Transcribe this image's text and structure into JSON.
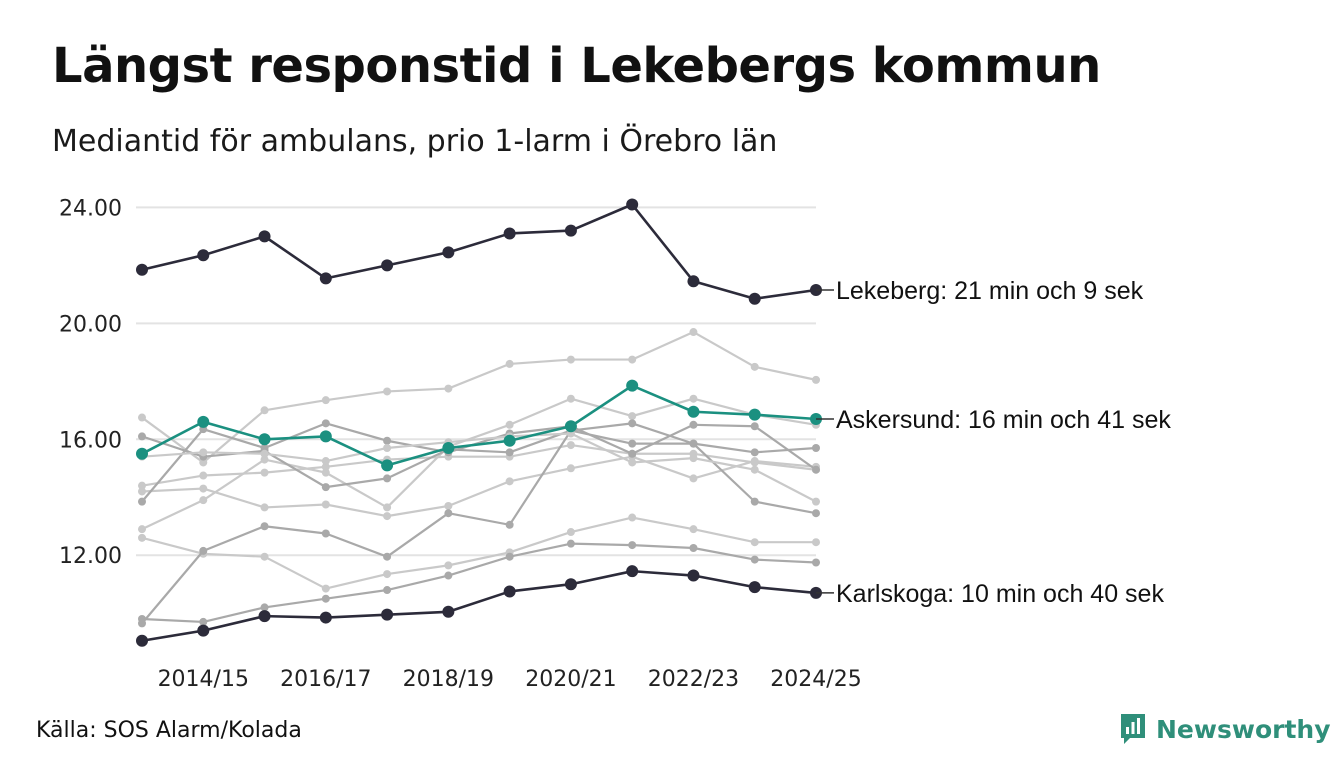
{
  "title": "Längst responstid i Lekebergs kommun",
  "subtitle": "Mediantid för ambulans, prio 1-larm i Örebro län",
  "source": "Källa: SOS Alarm/Kolada",
  "brand": "Newsworthy",
  "colors": {
    "highlight": "#2c2b3a",
    "accent": "#1b9080",
    "background_series": [
      "#c9c9c9",
      "#a9a9a9"
    ],
    "gridline": "#e3e3e3",
    "brand": "#2f8f7a"
  },
  "chart_data": {
    "type": "line",
    "title": "Längst responstid i Lekebergs kommun",
    "subtitle": "Mediantid för ambulans, prio 1-larm i Örebro län",
    "x": [
      "2013/14",
      "2014/15",
      "2015/16",
      "2016/17",
      "2017/18",
      "2018/19",
      "2019/20",
      "2020/21",
      "2021/22",
      "2022/23",
      "2023/24",
      "2024/25"
    ],
    "x_tick_labels": [
      "2014/15",
      "2016/17",
      "2018/19",
      "2020/21",
      "2022/23",
      "2024/25"
    ],
    "y_ticks": [
      12,
      16,
      20,
      24
    ],
    "y_tick_labels": [
      "12.00",
      "16.00",
      "20.00",
      "24.00"
    ],
    "ylim": [
      8.8,
      24.6
    ],
    "grid": true,
    "highlighted_series": [
      {
        "name": "Lekeberg",
        "label": "Lekeberg: 21 min och 9 sek",
        "color": "#2c2b3a",
        "values": [
          21.85,
          22.35,
          23.0,
          21.55,
          22.0,
          22.45,
          23.1,
          23.2,
          24.1,
          21.45,
          20.85,
          21.15
        ]
      },
      {
        "name": "Askersund",
        "label": "Askersund: 16 min och 41 sek",
        "color": "#1b9080",
        "values": [
          15.5,
          16.6,
          16.0,
          16.1,
          15.1,
          15.7,
          15.95,
          16.45,
          17.85,
          16.95,
          16.85,
          16.7
        ]
      },
      {
        "name": "Karlskoga",
        "label": "Karlskoga: 10 min och 40 sek",
        "color": "#2c2b3a",
        "values": [
          9.05,
          9.4,
          9.9,
          9.85,
          9.95,
          10.05,
          10.75,
          11.0,
          11.45,
          11.3,
          10.9,
          10.7
        ]
      }
    ],
    "background_series": [
      {
        "color": "#c9c9c9",
        "values": [
          14.4,
          14.75,
          14.85,
          15.05,
          15.3,
          15.4,
          15.4,
          15.8,
          15.5,
          15.5,
          15.2,
          14.95
        ]
      },
      {
        "color": "#c9c9c9",
        "values": [
          14.2,
          14.3,
          13.65,
          13.75,
          13.35,
          13.7,
          14.55,
          15.0,
          15.4,
          14.65,
          15.25,
          15.05
        ]
      },
      {
        "color": "#c9c9c9",
        "values": [
          16.75,
          15.2,
          17.0,
          17.35,
          17.65,
          17.75,
          18.6,
          18.75,
          18.75,
          19.7,
          18.5,
          18.05
        ]
      },
      {
        "color": "#c9c9c9",
        "values": [
          12.6,
          12.05,
          11.95,
          10.85,
          11.35,
          11.65,
          12.1,
          12.8,
          13.3,
          12.9,
          12.45,
          12.45
        ]
      },
      {
        "color": "#c9c9c9",
        "values": [
          12.9,
          13.9,
          15.3,
          14.85,
          13.65,
          15.75,
          16.5,
          17.4,
          16.8,
          17.4,
          16.85,
          16.5
        ]
      },
      {
        "color": "#a9a9a9",
        "values": [
          9.8,
          9.7,
          10.2,
          10.5,
          10.8,
          11.3,
          11.95,
          12.4,
          12.35,
          12.25,
          11.85,
          11.75
        ]
      },
      {
        "color": "#a9a9a9",
        "values": [
          9.65,
          12.15,
          13.0,
          12.75,
          11.95,
          13.45,
          13.05,
          16.3,
          15.85,
          15.85,
          13.85,
          13.45
        ]
      },
      {
        "color": "#a9a9a9",
        "values": [
          16.1,
          15.4,
          15.6,
          14.35,
          14.65,
          15.65,
          15.55,
          16.3,
          16.55,
          15.85,
          15.55,
          15.7
        ]
      },
      {
        "color": "#a9a9a9",
        "values": [
          13.85,
          16.35,
          15.7,
          16.55,
          15.95,
          15.55,
          16.2,
          16.45,
          15.5,
          16.5,
          16.45,
          14.95
        ]
      },
      {
        "color": "#c9c9c9",
        "values": [
          15.4,
          15.55,
          15.5,
          15.25,
          15.7,
          15.9,
          16.1,
          16.2,
          15.2,
          15.35,
          14.95,
          13.85
        ]
      }
    ]
  }
}
